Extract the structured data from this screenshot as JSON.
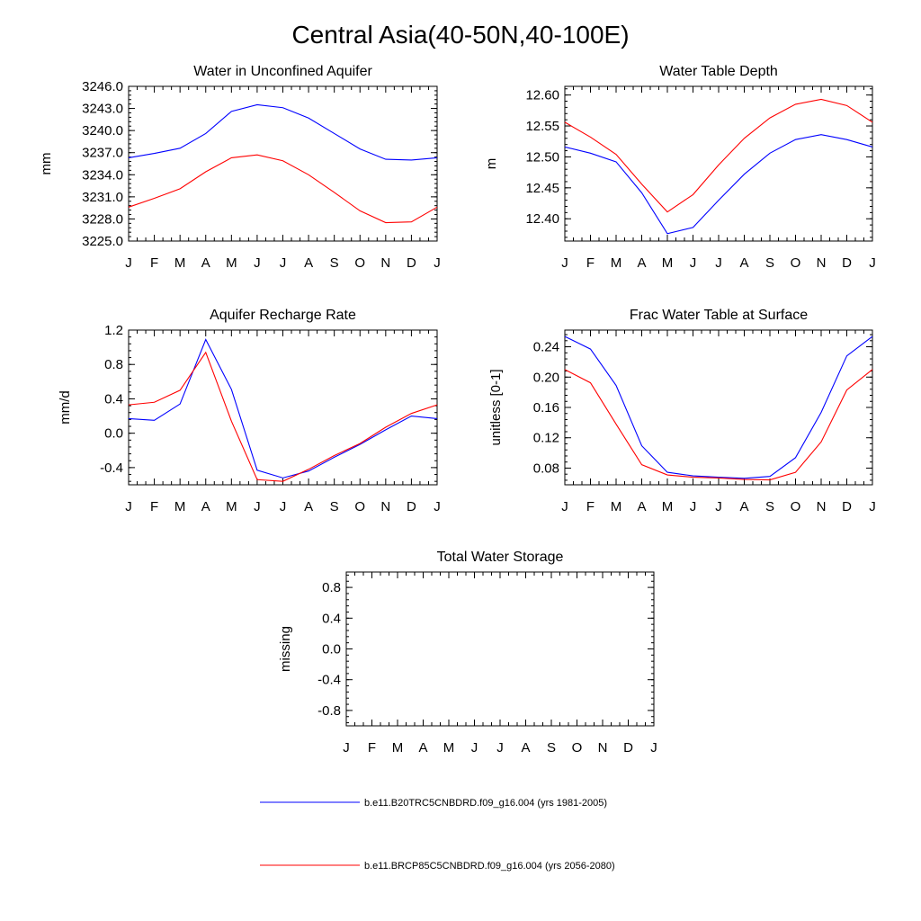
{
  "figure": {
    "title": "Central Asia(40-50N,40-100E)"
  },
  "colors": {
    "series1": "#0000ff",
    "series2": "#ff0000"
  },
  "legend": [
    {
      "label": "b.e11.B20TRC5CNBDRD.f09_g16.004 (yrs 1981-2005)",
      "color": "#0000ff"
    },
    {
      "label": "b.e11.BRCP85C5CNBDRD.f09_g16.004 (yrs 2056-2080)",
      "color": "#ff0000"
    }
  ],
  "chart_data": [
    {
      "type": "line",
      "title": "Water in Unconfined Aquifer",
      "xlabel": "",
      "ylabel": "mm",
      "categories": [
        "J",
        "F",
        "M",
        "A",
        "M",
        "J",
        "J",
        "A",
        "S",
        "O",
        "N",
        "D",
        "J"
      ],
      "ylim": [
        3225.0,
        3246.0
      ],
      "yticks": [
        3225.0,
        3228.0,
        3231.0,
        3234.0,
        3237.0,
        3240.0,
        3243.0,
        3246.0
      ],
      "ytick_labels": [
        "3225.0",
        "3228.0",
        "3231.0",
        "3234.0",
        "3237.0",
        "3240.0",
        "3243.0",
        "3246.0"
      ],
      "series": [
        {
          "name": "b.e11.B20TRC5CNBDRD.f09_g16.004 (yrs 1981-2005)",
          "values": [
            3236.3,
            3236.9,
            3237.6,
            3239.6,
            3242.6,
            3243.5,
            3243.1,
            3241.7,
            3239.6,
            3237.5,
            3236.1,
            3236.0,
            3236.3
          ]
        },
        {
          "name": "b.e11.BRCP85C5CNBDRD.f09_g16.004 (yrs 2056-2080)",
          "values": [
            3229.6,
            3230.8,
            3232.1,
            3234.4,
            3236.3,
            3236.7,
            3235.9,
            3234.0,
            3231.6,
            3229.1,
            3227.5,
            3227.6,
            3229.6
          ]
        }
      ]
    },
    {
      "type": "line",
      "title": "Water Table Depth",
      "xlabel": "",
      "ylabel": "m",
      "categories": [
        "J",
        "F",
        "M",
        "A",
        "M",
        "J",
        "J",
        "A",
        "S",
        "O",
        "N",
        "D",
        "J"
      ],
      "ylim": [
        12.364,
        12.614
      ],
      "yticks": [
        12.4,
        12.45,
        12.5,
        12.55,
        12.6
      ],
      "ytick_labels": [
        "12.40",
        "12.45",
        "12.50",
        "12.55",
        "12.60"
      ],
      "series": [
        {
          "name": "b.e11.B20TRC5CNBDRD.f09_g16.004 (yrs 1981-2005)",
          "values": [
            12.516,
            12.506,
            12.492,
            12.442,
            12.376,
            12.386,
            12.43,
            12.472,
            12.506,
            12.528,
            12.536,
            12.528,
            12.516
          ]
        },
        {
          "name": "b.e11.BRCP85C5CNBDRD.f09_g16.004 (yrs 2056-2080)",
          "values": [
            12.556,
            12.532,
            12.504,
            12.456,
            12.411,
            12.439,
            12.487,
            12.53,
            12.563,
            12.585,
            12.593,
            12.583,
            12.556
          ]
        }
      ]
    },
    {
      "type": "line",
      "title": "Aquifer Recharge Rate",
      "xlabel": "",
      "ylabel": "mm/d",
      "categories": [
        "J",
        "F",
        "M",
        "A",
        "M",
        "J",
        "J",
        "A",
        "S",
        "O",
        "N",
        "D",
        "J"
      ],
      "ylim": [
        -0.6,
        1.2
      ],
      "yticks": [
        -0.4,
        0.0,
        0.4,
        0.8,
        1.2
      ],
      "ytick_labels": [
        "-0.4",
        "0.0",
        "0.4",
        "0.8",
        "1.2"
      ],
      "series": [
        {
          "name": "b.e11.B20TRC5CNBDRD.f09_g16.004 (yrs 1981-2005)",
          "values": [
            0.17,
            0.15,
            0.34,
            1.09,
            0.51,
            -0.43,
            -0.52,
            -0.44,
            -0.28,
            -0.13,
            0.04,
            0.2,
            0.17
          ]
        },
        {
          "name": "b.e11.BRCP85C5CNBDRD.f09_g16.004 (yrs 2056-2080)",
          "values": [
            0.33,
            0.36,
            0.5,
            0.94,
            0.14,
            -0.54,
            -0.56,
            -0.42,
            -0.26,
            -0.12,
            0.07,
            0.23,
            0.33
          ]
        }
      ]
    },
    {
      "type": "line",
      "title": "Frac Water Table at Surface",
      "xlabel": "",
      "ylabel": "unitless [0-1]",
      "categories": [
        "J",
        "F",
        "M",
        "A",
        "M",
        "J",
        "J",
        "A",
        "S",
        "O",
        "N",
        "D",
        "J"
      ],
      "ylim": [
        0.058,
        0.262
      ],
      "yticks": [
        0.08,
        0.12,
        0.16,
        0.2,
        0.24
      ],
      "ytick_labels": [
        "0.08",
        "0.12",
        "0.16",
        "0.20",
        "0.24"
      ],
      "series": [
        {
          "name": "b.e11.B20TRC5CNBDRD.f09_g16.004 (yrs 1981-2005)",
          "values": [
            0.2536,
            0.237,
            0.189,
            0.1095,
            0.0745,
            0.0698,
            0.068,
            0.0665,
            0.069,
            0.0938,
            0.1535,
            0.228,
            0.2536
          ]
        },
        {
          "name": "b.e11.BRCP85C5CNBDRD.f09_g16.004 (yrs 2056-2080)",
          "values": [
            0.21,
            0.1925,
            0.138,
            0.0845,
            0.071,
            0.068,
            0.067,
            0.065,
            0.0645,
            0.0745,
            0.1145,
            0.183,
            0.21
          ]
        }
      ]
    },
    {
      "type": "line",
      "title": "Total Water Storage",
      "xlabel": "",
      "ylabel": "missing",
      "categories": [
        "J",
        "F",
        "M",
        "A",
        "M",
        "J",
        "J",
        "A",
        "S",
        "O",
        "N",
        "D",
        "J"
      ],
      "ylim": [
        -1.0,
        1.0
      ],
      "yticks": [
        -0.8,
        -0.4,
        0.0,
        0.4,
        0.8
      ],
      "ytick_labels": [
        "-0.8",
        "-0.4",
        "0.0",
        "0.4",
        "0.8"
      ],
      "series": []
    }
  ]
}
